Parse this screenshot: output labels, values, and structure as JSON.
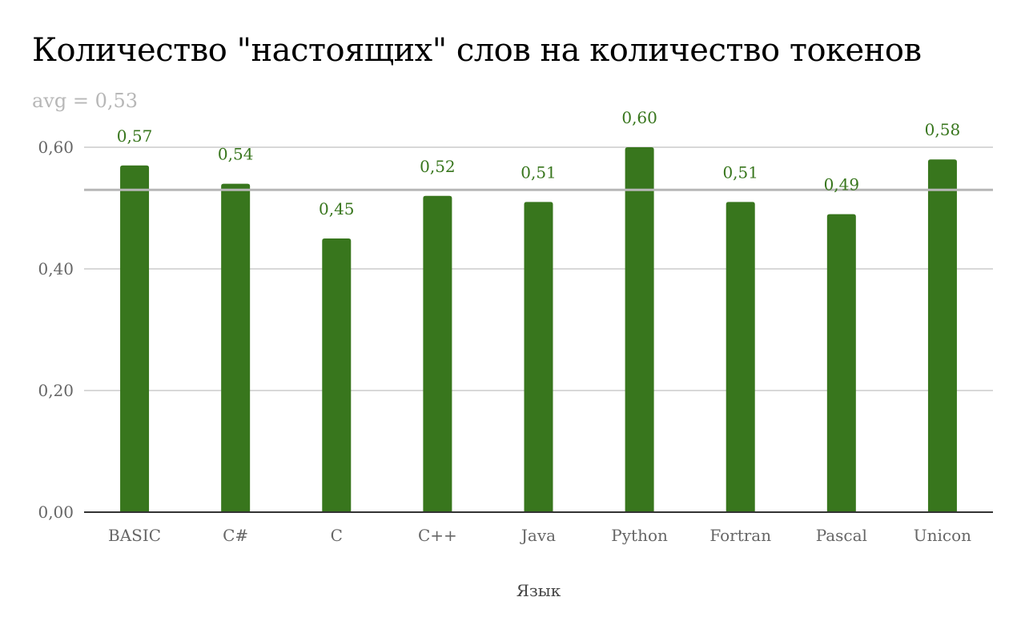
{
  "chart_data": {
    "type": "bar",
    "title": "Количество \"настоящих\" слов на количество токенов",
    "xlabel": "Язык",
    "ylabel": "",
    "categories": [
      "BASIC",
      "C#",
      "C",
      "C++",
      "Java",
      "Python",
      "Fortran",
      "Pascal",
      "Unicon"
    ],
    "values": [
      0.57,
      0.54,
      0.45,
      0.52,
      0.51,
      0.6,
      0.51,
      0.49,
      0.58
    ],
    "data_labels": [
      "0,57",
      "0,54",
      "0,45",
      "0,52",
      "0,51",
      "0,60",
      "0,51",
      "0,49",
      "0,58"
    ],
    "ylim": [
      0,
      0.6
    ],
    "yticks": [
      0,
      0.2,
      0.4,
      0.6
    ],
    "ytick_labels": [
      "0,00",
      "0,20",
      "0,40",
      "0,60"
    ],
    "grid": true,
    "legend": "none",
    "reference_line": {
      "label": "avg = 0,53",
      "value": 0.53
    },
    "colors": {
      "bar": "#38761d",
      "data_label": "#38761d",
      "avg_line": "#b7b7b7",
      "grid": "#cccccc",
      "axis": "#333333"
    }
  }
}
